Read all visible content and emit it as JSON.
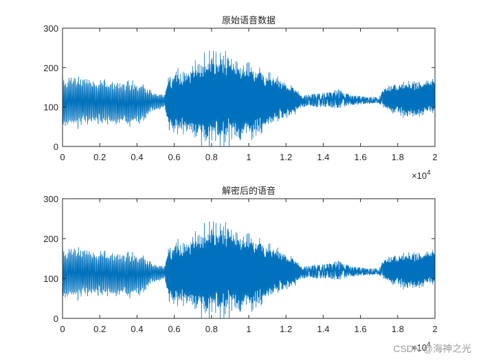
{
  "figure": {
    "background": "#ffffff",
    "line_color": "#0072BD",
    "axis_color": "#262626"
  },
  "watermark": "CSDN @海神之光",
  "chart_data": [
    {
      "type": "line",
      "title": "原始语音数据",
      "xlabel": "",
      "ylabel": "",
      "xlim": [
        0,
        20000
      ],
      "ylim": [
        0,
        300
      ],
      "xticks": [
        0,
        2000,
        4000,
        6000,
        8000,
        10000,
        12000,
        14000,
        16000,
        18000,
        20000
      ],
      "xtick_labels": [
        "0",
        "0.2",
        "0.4",
        "0.6",
        "0.8",
        "1",
        "1.2",
        "1.4",
        "1.6",
        "1.8",
        "2"
      ],
      "x_exponent_label": "×10^4",
      "yticks": [
        0,
        100,
        200,
        300
      ],
      "ytick_labels": [
        "0",
        "100",
        "200",
        "300"
      ],
      "grid": false,
      "baseline": 115,
      "envelope": [
        {
          "x": 0,
          "min": 50,
          "max": 175
        },
        {
          "x": 1000,
          "min": 55,
          "max": 175
        },
        {
          "x": 2500,
          "min": 60,
          "max": 165
        },
        {
          "x": 3500,
          "min": 55,
          "max": 165
        },
        {
          "x": 4200,
          "min": 60,
          "max": 160
        },
        {
          "x": 4800,
          "min": 90,
          "max": 140
        },
        {
          "x": 5500,
          "min": 100,
          "max": 130
        },
        {
          "x": 5700,
          "min": 35,
          "max": 185
        },
        {
          "x": 6500,
          "min": 30,
          "max": 195
        },
        {
          "x": 7500,
          "min": 10,
          "max": 230
        },
        {
          "x": 8200,
          "min": 5,
          "max": 245
        },
        {
          "x": 9000,
          "min": 15,
          "max": 225
        },
        {
          "x": 10500,
          "min": 30,
          "max": 200
        },
        {
          "x": 11500,
          "min": 60,
          "max": 175
        },
        {
          "x": 12500,
          "min": 85,
          "max": 150
        },
        {
          "x": 12800,
          "min": 100,
          "max": 130
        },
        {
          "x": 14000,
          "min": 100,
          "max": 135
        },
        {
          "x": 14800,
          "min": 95,
          "max": 145
        },
        {
          "x": 15500,
          "min": 105,
          "max": 130
        },
        {
          "x": 17000,
          "min": 110,
          "max": 125
        },
        {
          "x": 17300,
          "min": 95,
          "max": 150
        },
        {
          "x": 18500,
          "min": 75,
          "max": 165
        },
        {
          "x": 20000,
          "min": 85,
          "max": 170
        }
      ]
    },
    {
      "type": "line",
      "title": "解密后的语音",
      "xlabel": "",
      "ylabel": "",
      "xlim": [
        0,
        20000
      ],
      "ylim": [
        0,
        300
      ],
      "xticks": [
        0,
        2000,
        4000,
        6000,
        8000,
        10000,
        12000,
        14000,
        16000,
        18000,
        20000
      ],
      "xtick_labels": [
        "0",
        "0.2",
        "0.4",
        "0.6",
        "0.8",
        "1",
        "1.2",
        "1.4",
        "1.6",
        "1.8",
        "2"
      ],
      "x_exponent_label": "×10^4",
      "yticks": [
        0,
        100,
        200,
        300
      ],
      "ytick_labels": [
        "0",
        "100",
        "200",
        "300"
      ],
      "grid": false,
      "baseline": 115,
      "envelope": [
        {
          "x": 0,
          "min": 50,
          "max": 175
        },
        {
          "x": 1000,
          "min": 55,
          "max": 175
        },
        {
          "x": 2500,
          "min": 60,
          "max": 165
        },
        {
          "x": 3500,
          "min": 55,
          "max": 165
        },
        {
          "x": 4200,
          "min": 60,
          "max": 160
        },
        {
          "x": 4800,
          "min": 90,
          "max": 140
        },
        {
          "x": 5500,
          "min": 100,
          "max": 130
        },
        {
          "x": 5700,
          "min": 35,
          "max": 185
        },
        {
          "x": 6500,
          "min": 30,
          "max": 195
        },
        {
          "x": 7500,
          "min": 10,
          "max": 230
        },
        {
          "x": 8200,
          "min": 5,
          "max": 245
        },
        {
          "x": 9000,
          "min": 15,
          "max": 225
        },
        {
          "x": 10500,
          "min": 30,
          "max": 200
        },
        {
          "x": 11500,
          "min": 60,
          "max": 175
        },
        {
          "x": 12500,
          "min": 85,
          "max": 150
        },
        {
          "x": 12800,
          "min": 100,
          "max": 130
        },
        {
          "x": 14000,
          "min": 100,
          "max": 135
        },
        {
          "x": 14800,
          "min": 95,
          "max": 145
        },
        {
          "x": 15500,
          "min": 105,
          "max": 130
        },
        {
          "x": 17000,
          "min": 110,
          "max": 125
        },
        {
          "x": 17300,
          "min": 95,
          "max": 150
        },
        {
          "x": 18500,
          "min": 75,
          "max": 165
        },
        {
          "x": 20000,
          "min": 85,
          "max": 170
        }
      ]
    }
  ]
}
